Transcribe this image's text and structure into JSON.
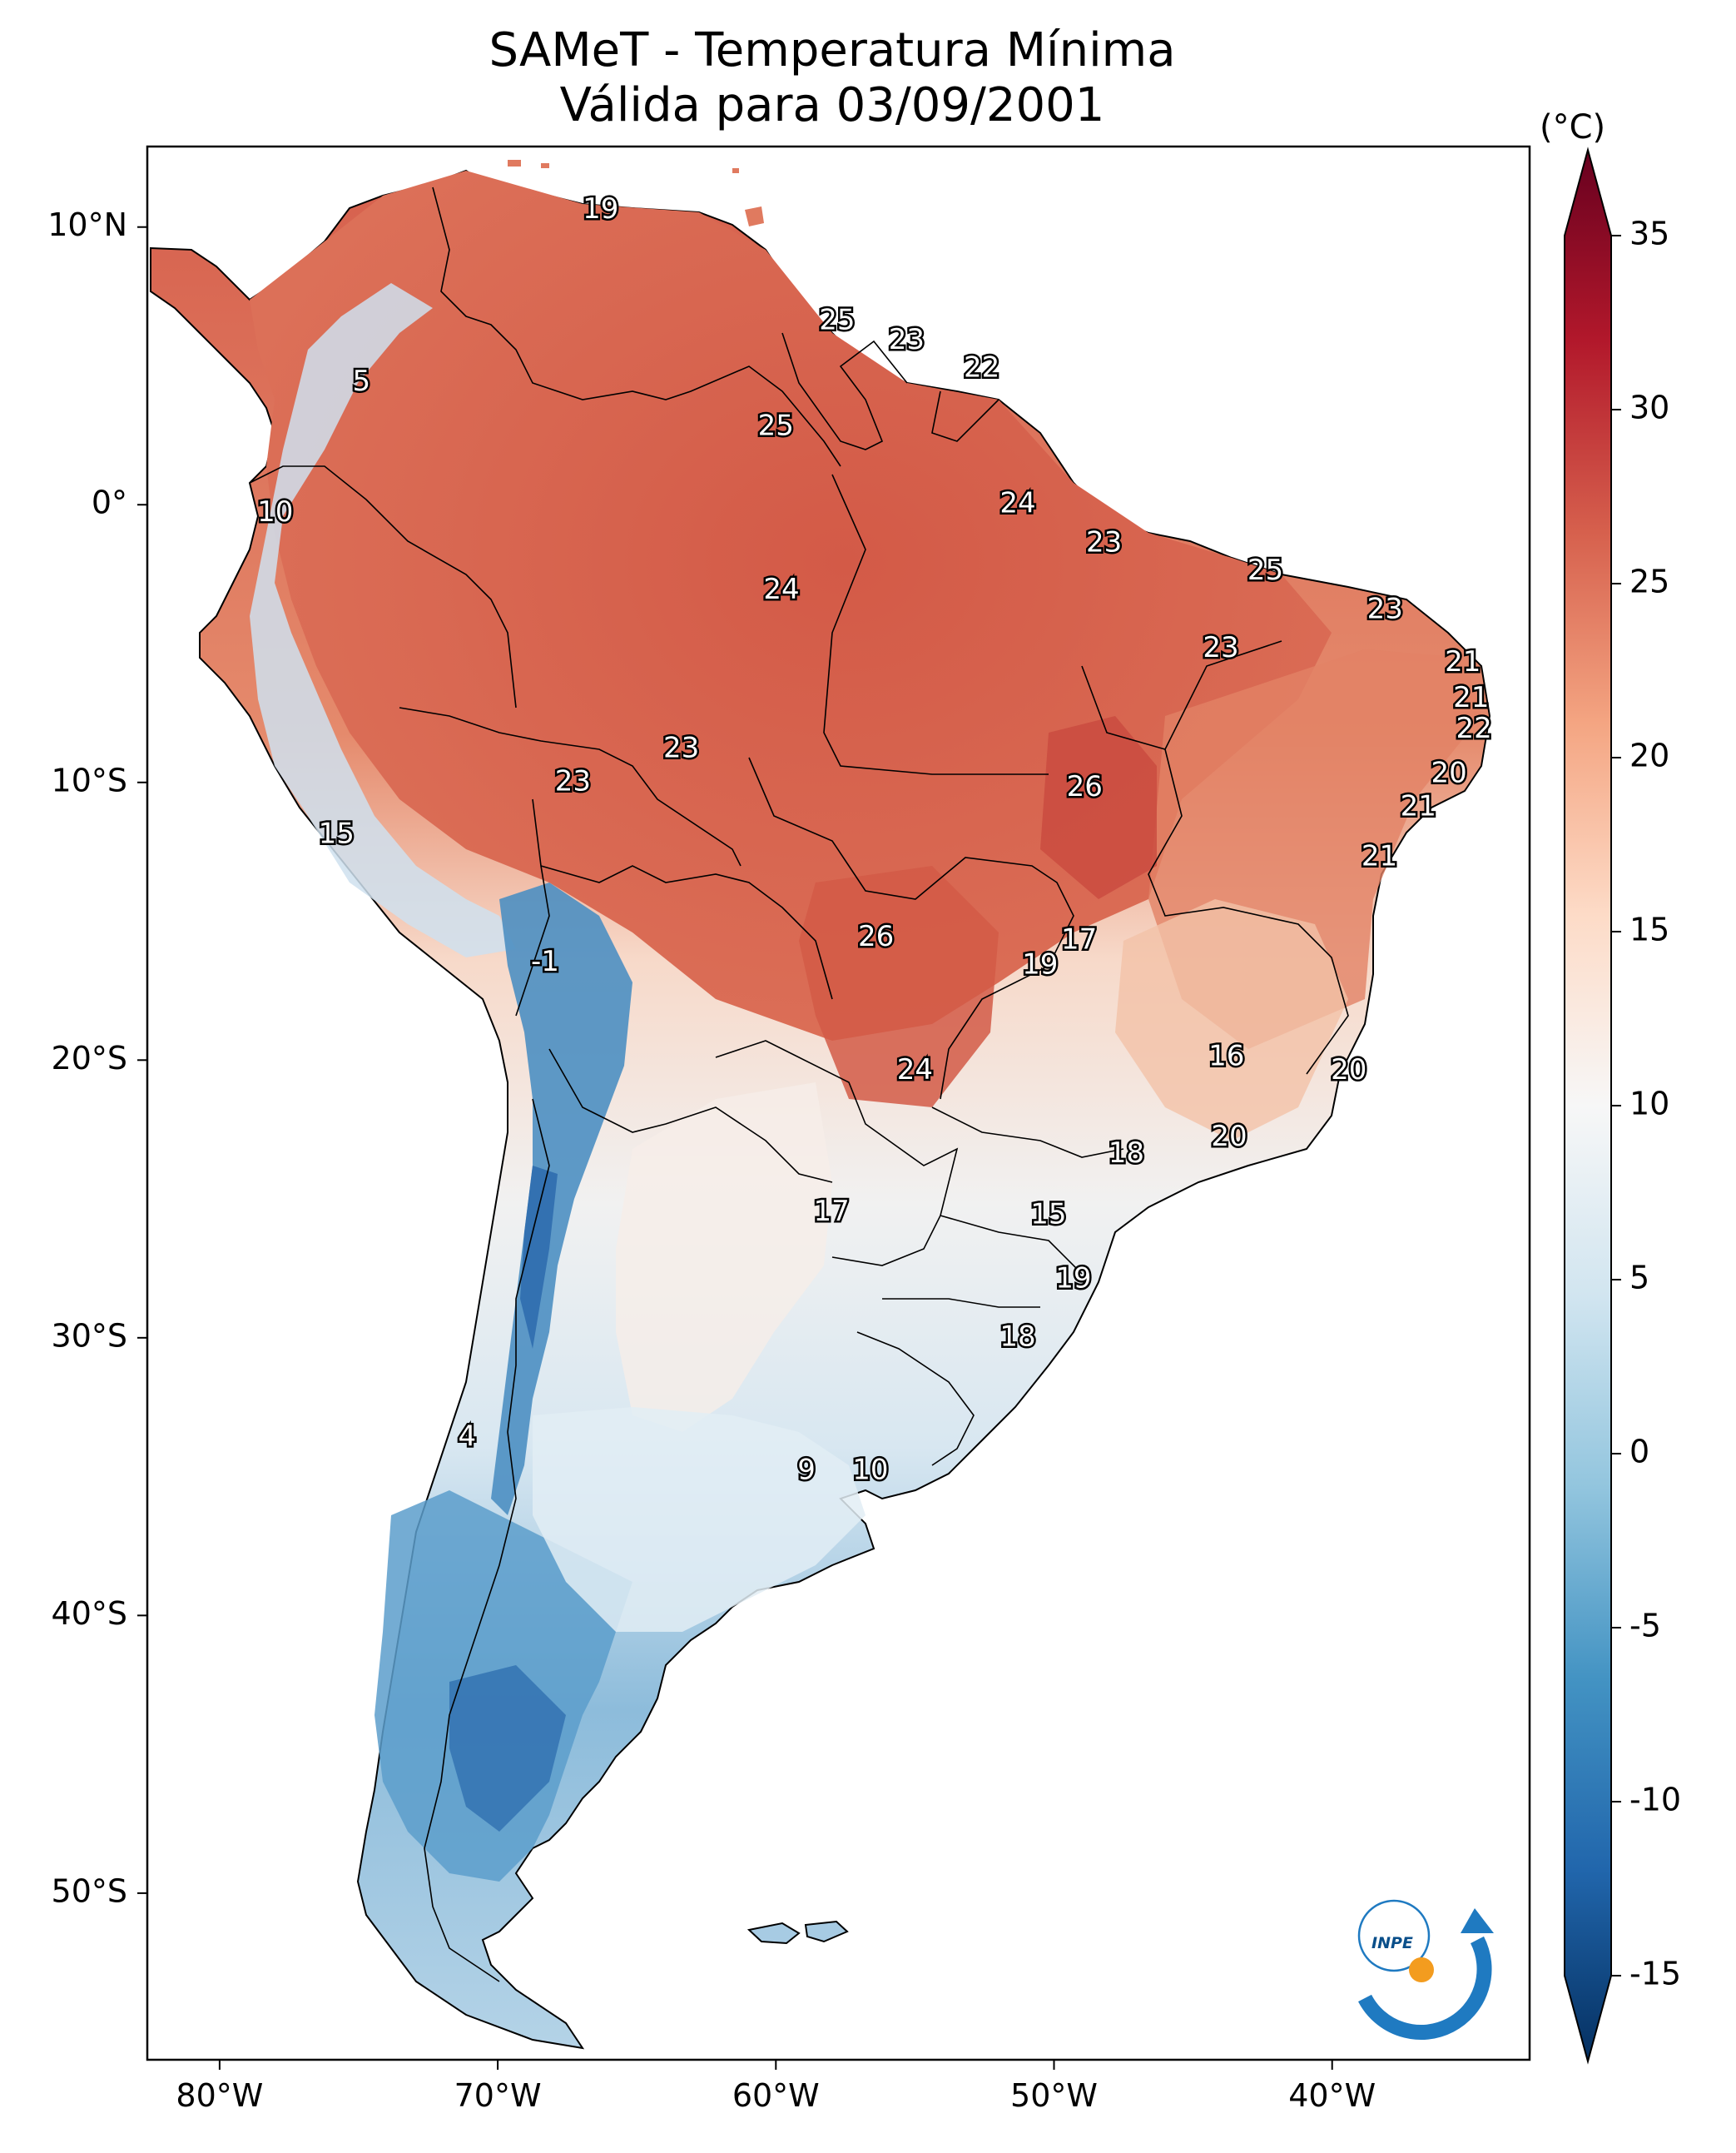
{
  "title": {
    "line1": "SAMeT - Temperatura Mínima",
    "line2": "Válida para 03/09/2001"
  },
  "colorbar": {
    "unit": "(°C)",
    "min": -15,
    "max": 35,
    "ticks": [
      "35",
      "30",
      "25",
      "20",
      "15",
      "10",
      "5",
      "0",
      "-5",
      "-10",
      "-15"
    ],
    "tick_values": [
      35,
      30,
      25,
      20,
      15,
      10,
      5,
      0,
      -5,
      -10,
      -15
    ],
    "colors": [
      "#053061",
      "#2166ac",
      "#4393c3",
      "#92c5de",
      "#d1e5f0",
      "#f7f7f7",
      "#fddbc7",
      "#f4a582",
      "#d6604d",
      "#b2182b",
      "#67001f"
    ]
  },
  "axes": {
    "lat_labels": [
      "10°N",
      "0°",
      "10°S",
      "20°S",
      "30°S",
      "40°S",
      "50°S"
    ],
    "lat_values": [
      10,
      0,
      -10,
      -20,
      -30,
      -40,
      -50
    ],
    "lon_labels": [
      "80°W",
      "70°W",
      "60°W",
      "50°W",
      "40°W"
    ],
    "lon_values": [
      -80,
      -70,
      -60,
      -50,
      -40
    ],
    "lon_range": [
      -82.6,
      -32.9
    ],
    "lat_range": [
      -56,
      12.9
    ]
  },
  "chart_data": {
    "type": "heatmap",
    "title": "SAMeT - Temperatura Mínima",
    "subtitle": "Válida para 03/09/2001",
    "units": "°C",
    "contour_labels": [
      {
        "lon": -66.3,
        "lat": 10.6,
        "value": 19
      },
      {
        "lon": -74.9,
        "lat": 4.4,
        "value": 5
      },
      {
        "lon": -57.8,
        "lat": 6.6,
        "value": 25
      },
      {
        "lon": -55.3,
        "lat": 5.9,
        "value": 23
      },
      {
        "lon": -52.6,
        "lat": 4.9,
        "value": 22
      },
      {
        "lon": -60.0,
        "lat": 2.8,
        "value": 25
      },
      {
        "lon": -51.3,
        "lat": 0.0,
        "value": 24
      },
      {
        "lon": -48.2,
        "lat": -1.4,
        "value": 23
      },
      {
        "lon": -78.0,
        "lat": -0.3,
        "value": 10
      },
      {
        "lon": -42.4,
        "lat": -2.4,
        "value": 25
      },
      {
        "lon": -59.8,
        "lat": -3.1,
        "value": 24
      },
      {
        "lon": -38.1,
        "lat": -3.8,
        "value": 23
      },
      {
        "lon": -44.0,
        "lat": -5.2,
        "value": 23
      },
      {
        "lon": -35.3,
        "lat": -5.7,
        "value": 21
      },
      {
        "lon": -35.0,
        "lat": -7.0,
        "value": 21
      },
      {
        "lon": -34.9,
        "lat": -8.1,
        "value": 22
      },
      {
        "lon": -63.4,
        "lat": -8.8,
        "value": 23
      },
      {
        "lon": -67.3,
        "lat": -10.0,
        "value": 23
      },
      {
        "lon": -35.8,
        "lat": -9.7,
        "value": 20
      },
      {
        "lon": -48.9,
        "lat": -10.2,
        "value": 26
      },
      {
        "lon": -36.9,
        "lat": -10.9,
        "value": 21
      },
      {
        "lon": -38.3,
        "lat": -12.7,
        "value": 21
      },
      {
        "lon": -75.8,
        "lat": -11.9,
        "value": 15
      },
      {
        "lon": -56.4,
        "lat": -15.6,
        "value": 26
      },
      {
        "lon": -49.1,
        "lat": -15.7,
        "value": 17
      },
      {
        "lon": -50.5,
        "lat": -16.6,
        "value": 19
      },
      {
        "lon": -68.3,
        "lat": -16.5,
        "value": -1
      },
      {
        "lon": -43.8,
        "lat": -19.9,
        "value": 16
      },
      {
        "lon": -39.4,
        "lat": -20.4,
        "value": 20
      },
      {
        "lon": -55.0,
        "lat": -20.4,
        "value": 24
      },
      {
        "lon": -47.4,
        "lat": -23.4,
        "value": 18
      },
      {
        "lon": -43.7,
        "lat": -22.8,
        "value": 20
      },
      {
        "lon": -58.0,
        "lat": -25.5,
        "value": 17
      },
      {
        "lon": -50.2,
        "lat": -25.6,
        "value": 15
      },
      {
        "lon": -49.3,
        "lat": -27.9,
        "value": 19
      },
      {
        "lon": -51.3,
        "lat": -30.0,
        "value": 18
      },
      {
        "lon": -71.1,
        "lat": -33.6,
        "value": 4
      },
      {
        "lon": -58.9,
        "lat": -34.8,
        "value": 9
      },
      {
        "lon": -56.6,
        "lat": -34.8,
        "value": 10
      }
    ]
  },
  "logo": {
    "text": "INPE"
  }
}
